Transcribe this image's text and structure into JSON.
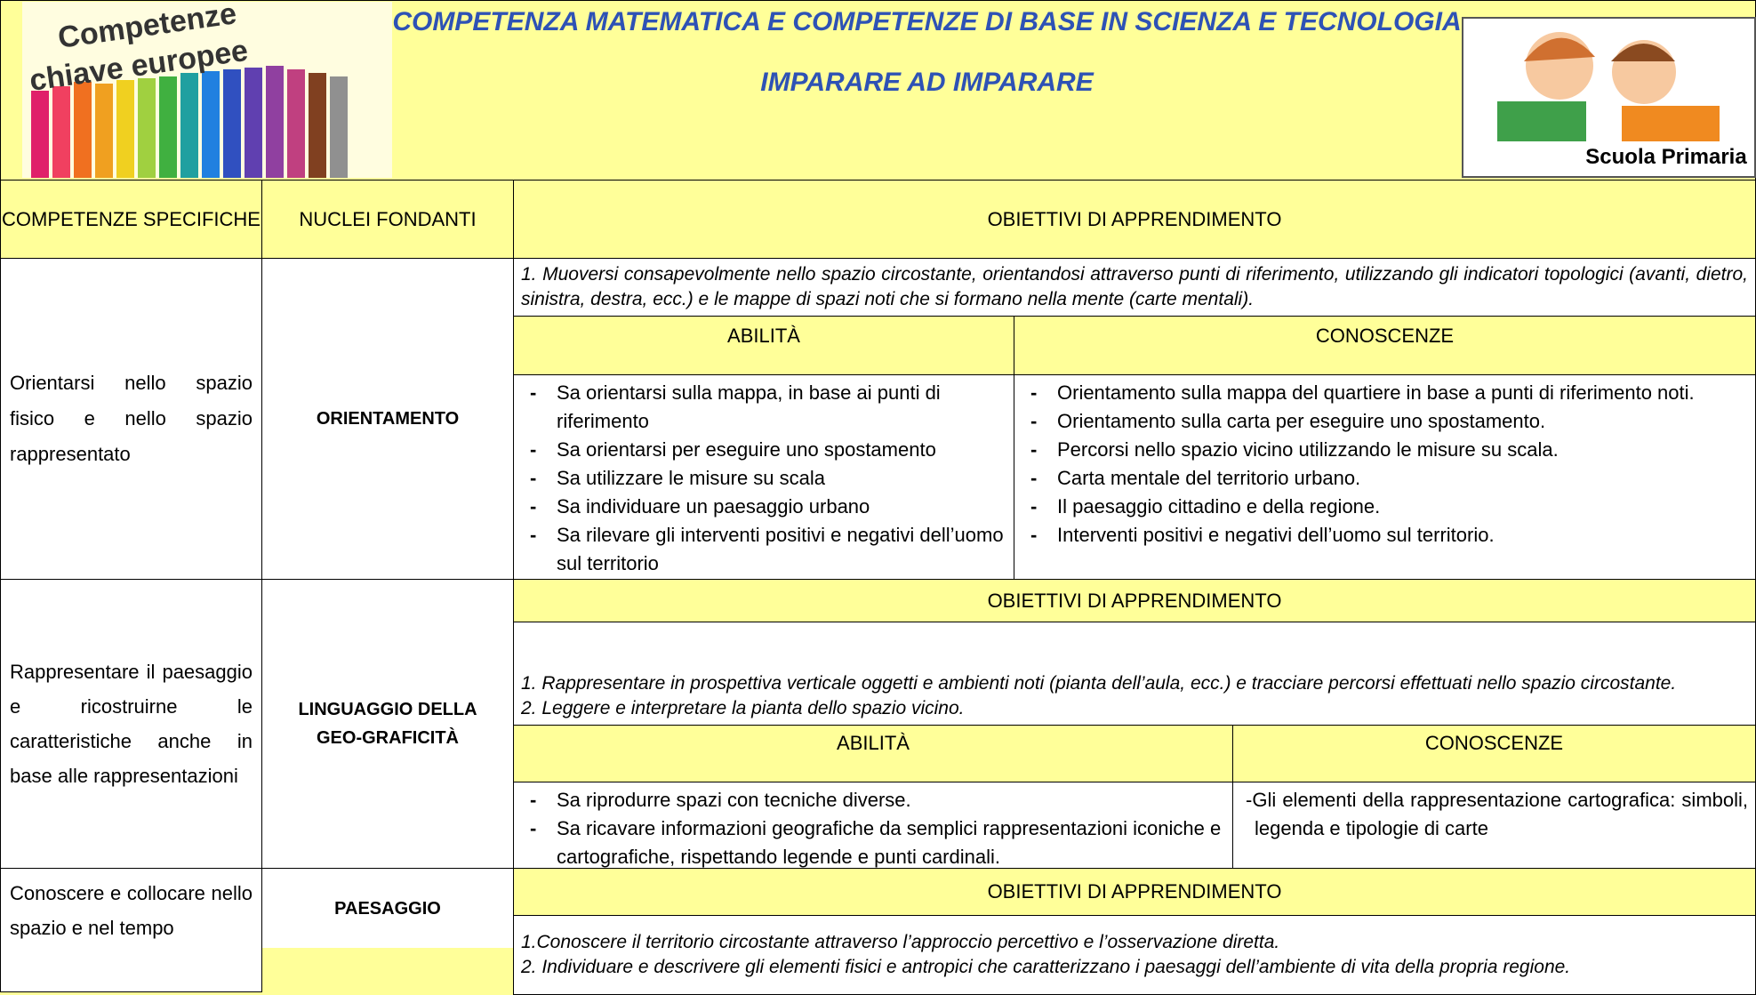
{
  "header": {
    "logo_text": [
      "Competenze",
      "chiave europee"
    ],
    "title": "COMPETENZA MATEMATICA E COMPETENZE DI BASE IN SCIENZA E TECNOLOGIA",
    "subtitle": "IMPARARE AD IMPARARE",
    "badge": "Scuola Primaria"
  },
  "table": {
    "columns": [
      "COMPETENZE SPECIFICHE",
      "NUCLEI FONDANTI",
      "OBIETTIVI DI APPRENDIMENTO"
    ],
    "rows": [
      {
        "competenza": "Orientarsi nello spazio fisico e nello spazio rappresentato",
        "nucleo": "ORIENTAMENTO",
        "objectives": [
          "1. Muoversi consapevolmente nello spazio circostante, orientandosi attraverso punti di riferimento, utilizzando gli indicatori topologici (avanti, dietro, sinistra, destra, ecc.) e le mappe di spazi noti che si formano nella mente (carte mentali)."
        ],
        "abilita_heading": "ABILITÀ",
        "conoscenze_heading": "CONOSCENZE",
        "abilita": [
          {
            "bullet": "-",
            "text": "Sa orientarsi sulla mappa, in base ai punti di riferimento"
          },
          {
            "bullet": "-",
            "text": "Sa orientarsi per eseguire uno spostamento"
          },
          {
            "bullet": "-",
            "text": "Sa utilizzare le misure su scala"
          },
          {
            "bullet": "-",
            "text": "Sa individuare un paesaggio urbano"
          },
          {
            "bullet": "-",
            "text": "Sa rilevare gli interventi positivi e negativi dell’uomo sul territorio"
          }
        ],
        "conoscenze": [
          {
            "bullet": "-",
            "text": "Orientamento sulla mappa del quartiere in base a punti di riferimento noti."
          },
          {
            "bullet": "-",
            "text": "Orientamento sulla carta per eseguire uno spostamento."
          },
          {
            "bullet": "-",
            "text": "Percorsi nello spazio vicino utilizzando le misure su scala."
          },
          {
            "bullet": "-",
            "text": "Carta mentale del territorio urbano."
          },
          {
            "bullet": "-",
            "text": "Il paesaggio cittadino e della regione."
          },
          {
            "bullet": "-",
            "text": "Interventi positivi e negativi dell’uomo sul territorio."
          }
        ]
      },
      {
        "competenza": "Rappresentare il paesaggio e ricostruirne le caratteristiche anche in base alle rappresentazioni",
        "nucleo": "LINGUAGGIO DELLA GEO-GRAFICITÀ",
        "objectives_heading": "OBIETTIVI DI APPRENDIMENTO",
        "objectives": [
          "1. Rappresentare in prospettiva verticale oggetti e ambienti noti (pianta dell’aula, ecc.) e tracciare percorsi effettuati nello spazio circostante.",
          "2. Leggere e interpretare la pianta dello spazio vicino."
        ],
        "abilita_heading": "ABILITÀ",
        "conoscenze_heading": "CONOSCENZE",
        "abilita": [
          {
            "bullet": "-",
            "text": "Sa riprodurre spazi con tecniche diverse."
          },
          {
            "bullet": "-",
            "text": "Sa ricavare informazioni geografiche da semplici rappresentazioni iconiche e cartografiche, rispettando legende e punti cardinali."
          }
        ],
        "conoscenze": [
          {
            "text": "-Gli elementi della rappresentazione cartografica: simboli, legenda e tipologie di carte"
          }
        ]
      },
      {
        "competenza": "Conoscere e collocare nello spazio e nel tempo",
        "nucleo": "PAESAGGIO",
        "objectives_heading": "OBIETTIVI DI APPRENDIMENTO",
        "objectives": [
          "1.Conoscere il territorio circostante attraverso l’approccio percettivo e l’osservazione diretta.",
          "2. Individuare e descrivere gli elementi fisici e antropici che caratterizzano i paesaggi dell’ambiente di vita della propria regione."
        ]
      }
    ]
  }
}
